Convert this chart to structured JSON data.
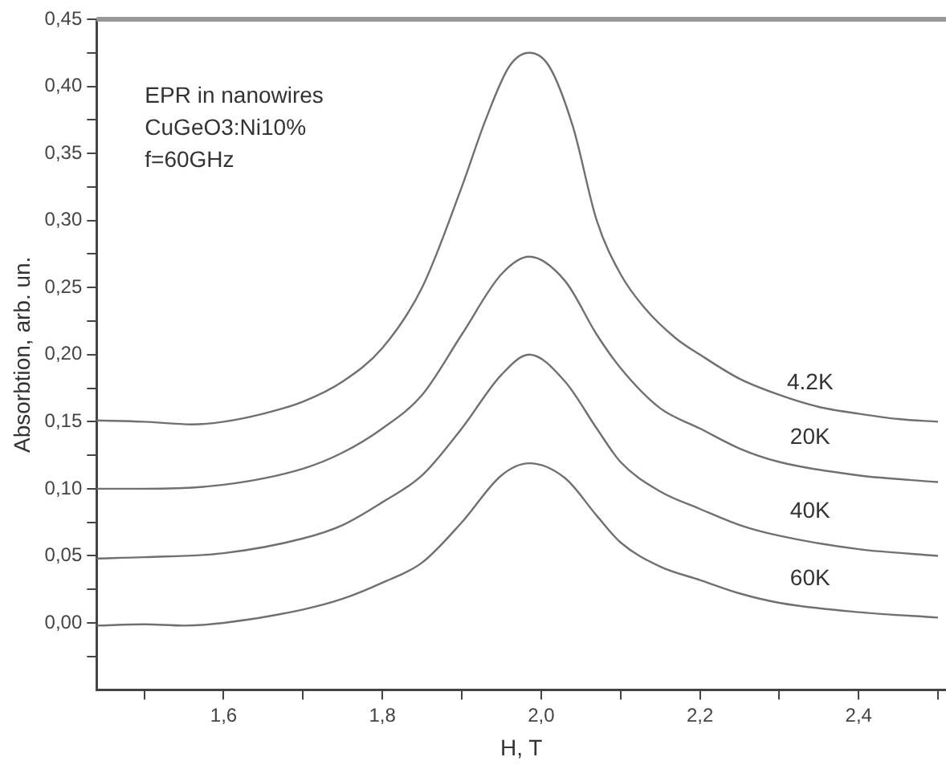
{
  "chart_data": {
    "type": "line",
    "xlabel": "H, T",
    "ylabel": "Absorbtion, arb. un.",
    "xlim": [
      1.44,
      2.51
    ],
    "xticks": [
      {
        "value": 1.5,
        "label": null
      },
      {
        "value": 1.6,
        "label": "1,6"
      },
      {
        "value": 1.7,
        "label": null
      },
      {
        "value": 1.8,
        "label": "1,8"
      },
      {
        "value": 1.9,
        "label": null
      },
      {
        "value": 2.0,
        "label": "2,0"
      },
      {
        "value": 2.1,
        "label": null
      },
      {
        "value": 2.2,
        "label": "2,2"
      },
      {
        "value": 2.3,
        "label": null
      },
      {
        "value": 2.4,
        "label": "2,4"
      },
      {
        "value": 2.5,
        "label": null
      }
    ],
    "ylim": [
      -0.05,
      0.45
    ],
    "yticks": [
      {
        "value": -0.025,
        "label": null
      },
      {
        "value": 0,
        "label": "0,00"
      },
      {
        "value": 0.025,
        "label": null
      },
      {
        "value": 0.05,
        "label": "0,05"
      },
      {
        "value": 0.075,
        "label": null
      },
      {
        "value": 0.1,
        "label": "0,10"
      },
      {
        "value": 0.125,
        "label": null
      },
      {
        "value": 0.15,
        "label": "0,15"
      },
      {
        "value": 0.175,
        "label": null
      },
      {
        "value": 0.2,
        "label": "0,20"
      },
      {
        "value": 0.225,
        "label": null
      },
      {
        "value": 0.25,
        "label": "0,25"
      },
      {
        "value": 0.275,
        "label": null
      },
      {
        "value": 0.3,
        "label": "0,30"
      },
      {
        "value": 0.325,
        "label": null
      },
      {
        "value": 0.35,
        "label": "0,35"
      },
      {
        "value": 0.375,
        "label": null
      },
      {
        "value": 0.4,
        "label": "0,40"
      },
      {
        "value": 0.425,
        "label": null
      },
      {
        "value": 0.45,
        "label": "0,45"
      }
    ],
    "grid": false,
    "legend": false,
    "marker": "none",
    "line_style": "solid",
    "annotations": [
      "EPR in nanowires",
      "CuGeO3:Ni10%",
      "f=60GHz"
    ],
    "series": [
      {
        "name": "4.2K",
        "color": "#707070",
        "x": [
          1.44,
          1.5,
          1.56,
          1.6,
          1.65,
          1.7,
          1.75,
          1.8,
          1.85,
          1.9,
          1.93,
          1.96,
          1.985,
          2.01,
          2.04,
          2.07,
          2.1,
          2.13,
          2.17,
          2.2,
          2.25,
          2.3,
          2.35,
          2.4,
          2.45,
          2.5
        ],
        "values": [
          0.151,
          0.15,
          0.148,
          0.15,
          0.156,
          0.165,
          0.18,
          0.205,
          0.25,
          0.325,
          0.375,
          0.415,
          0.425,
          0.415,
          0.37,
          0.3,
          0.26,
          0.235,
          0.212,
          0.2,
          0.182,
          0.17,
          0.161,
          0.156,
          0.152,
          0.15
        ]
      },
      {
        "name": "20K",
        "color": "#707070",
        "x": [
          1.44,
          1.5,
          1.6,
          1.7,
          1.75,
          1.8,
          1.85,
          1.9,
          1.95,
          1.985,
          2.03,
          2.07,
          2.1,
          2.15,
          2.2,
          2.25,
          2.3,
          2.4,
          2.5
        ],
        "values": [
          0.1,
          0.1,
          0.103,
          0.115,
          0.127,
          0.145,
          0.17,
          0.215,
          0.26,
          0.273,
          0.255,
          0.215,
          0.19,
          0.16,
          0.145,
          0.13,
          0.12,
          0.11,
          0.105
        ]
      },
      {
        "name": "40K",
        "color": "#707070",
        "x": [
          1.44,
          1.5,
          1.6,
          1.7,
          1.75,
          1.8,
          1.85,
          1.9,
          1.95,
          1.985,
          2.03,
          2.07,
          2.1,
          2.15,
          2.2,
          2.25,
          2.3,
          2.4,
          2.5
        ],
        "values": [
          0.048,
          0.049,
          0.052,
          0.063,
          0.073,
          0.09,
          0.11,
          0.145,
          0.185,
          0.2,
          0.18,
          0.145,
          0.12,
          0.098,
          0.085,
          0.073,
          0.065,
          0.055,
          0.05
        ]
      },
      {
        "name": "60K",
        "color": "#707070",
        "x": [
          1.44,
          1.5,
          1.55,
          1.6,
          1.7,
          1.75,
          1.8,
          1.85,
          1.9,
          1.95,
          1.985,
          2.03,
          2.07,
          2.1,
          2.15,
          2.2,
          2.25,
          2.3,
          2.4,
          2.5
        ],
        "values": [
          -0.002,
          -0.001,
          -0.002,
          0,
          0.01,
          0.018,
          0.03,
          0.045,
          0.075,
          0.11,
          0.119,
          0.108,
          0.08,
          0.06,
          0.042,
          0.032,
          0.022,
          0.015,
          0.008,
          0.004
        ]
      }
    ]
  }
}
